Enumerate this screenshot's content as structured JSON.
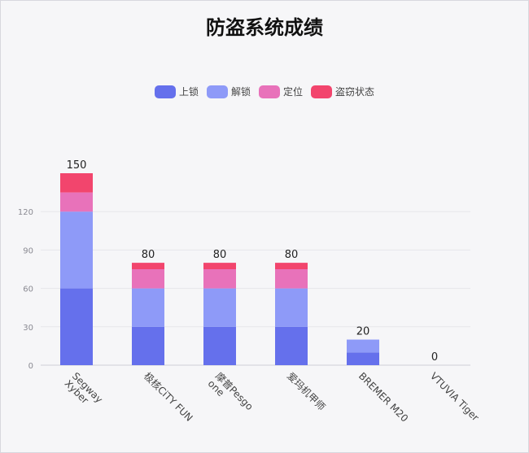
{
  "chart_data": {
    "type": "bar",
    "stacked": true,
    "title": "防盗系统成绩",
    "categories": [
      "Segway Xyber",
      "极核CiTY FUN",
      "摩普Pesgo one",
      "爱玛机甲师",
      "BREMER M20",
      "VTUVIA Tiger"
    ],
    "category_lines": [
      [
        "Segway",
        "Xyber"
      ],
      [
        "极核CiTY FUN"
      ],
      [
        "摩普Pesgo",
        "one"
      ],
      [
        "爱玛机甲师"
      ],
      [
        "BREMER M20"
      ],
      [
        "VTUVIA Tiger"
      ]
    ],
    "series": [
      {
        "name": "上锁",
        "color": "#6570ec",
        "values": [
          60,
          30,
          30,
          30,
          10,
          0
        ]
      },
      {
        "name": "解锁",
        "color": "#8e9af8",
        "values": [
          60,
          30,
          30,
          30,
          10,
          0
        ]
      },
      {
        "name": "定位",
        "color": "#e872ba",
        "values": [
          15,
          15,
          15,
          15,
          0,
          0
        ]
      },
      {
        "name": "盗窃状态",
        "color": "#f2456d",
        "values": [
          15,
          5,
          5,
          5,
          0,
          0
        ]
      }
    ],
    "totals": [
      "150",
      "80",
      "80",
      "80",
      "20",
      "0"
    ],
    "y_ticks": [
      "0",
      "30",
      "60",
      "90",
      "120"
    ],
    "ylim": [
      0,
      150
    ],
    "xlabel": "",
    "ylabel": "",
    "grid": true,
    "legend_position": "top"
  }
}
